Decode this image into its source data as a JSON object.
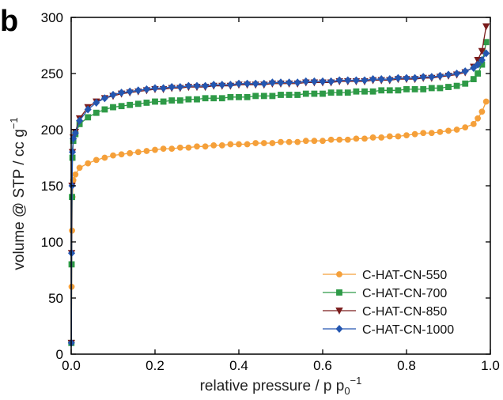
{
  "chart_data": {
    "type": "line",
    "panel_label": "b",
    "title": "",
    "xlabel_main": "relative pressure / p p",
    "xlabel_sub": "0",
    "xlabel_sup": "−1",
    "ylabel": "volume @ STP / cc g",
    "ylabel_sup": "−1",
    "xlim": [
      0,
      1.0
    ],
    "ylim": [
      0,
      300
    ],
    "x_ticks": [
      0,
      0.2,
      0.4,
      0.6,
      0.8,
      1.0
    ],
    "x_tick_labels": [
      "0.0",
      "0.2",
      "0.4",
      "0.6",
      "0.8",
      "1.0"
    ],
    "y_ticks": [
      0,
      50,
      100,
      150,
      200,
      250,
      300
    ],
    "y_tick_labels": [
      "0",
      "50",
      "100",
      "150",
      "200",
      "250",
      "300"
    ],
    "grid": false,
    "legend_position": "bottom-right",
    "series": [
      {
        "name": "C-HAT-CN-550",
        "color": "#F5A03A",
        "marker": "circle",
        "points": [
          [
            0.0005,
            10
          ],
          [
            0.001,
            60
          ],
          [
            0.002,
            110
          ],
          [
            0.003,
            140
          ],
          [
            0.005,
            155
          ],
          [
            0.01,
            160
          ],
          [
            0.02,
            166
          ],
          [
            0.04,
            170
          ],
          [
            0.06,
            173
          ],
          [
            0.08,
            175
          ],
          [
            0.1,
            177
          ],
          [
            0.12,
            178
          ],
          [
            0.14,
            179
          ],
          [
            0.16,
            180
          ],
          [
            0.18,
            181
          ],
          [
            0.2,
            182
          ],
          [
            0.22,
            183
          ],
          [
            0.24,
            183
          ],
          [
            0.26,
            184
          ],
          [
            0.28,
            184
          ],
          [
            0.3,
            185
          ],
          [
            0.32,
            185
          ],
          [
            0.34,
            186
          ],
          [
            0.36,
            186
          ],
          [
            0.38,
            187
          ],
          [
            0.4,
            187
          ],
          [
            0.42,
            187
          ],
          [
            0.44,
            188
          ],
          [
            0.46,
            188
          ],
          [
            0.48,
            188
          ],
          [
            0.5,
            189
          ],
          [
            0.52,
            189
          ],
          [
            0.54,
            189
          ],
          [
            0.56,
            190
          ],
          [
            0.58,
            190
          ],
          [
            0.6,
            190
          ],
          [
            0.62,
            191
          ],
          [
            0.64,
            191
          ],
          [
            0.66,
            191
          ],
          [
            0.68,
            192
          ],
          [
            0.7,
            192
          ],
          [
            0.72,
            193
          ],
          [
            0.74,
            193
          ],
          [
            0.76,
            194
          ],
          [
            0.78,
            194
          ],
          [
            0.8,
            195
          ],
          [
            0.82,
            196
          ],
          [
            0.84,
            197
          ],
          [
            0.86,
            197
          ],
          [
            0.88,
            198
          ],
          [
            0.9,
            199
          ],
          [
            0.92,
            200
          ],
          [
            0.94,
            202
          ],
          [
            0.96,
            205
          ],
          [
            0.97,
            210
          ],
          [
            0.98,
            216
          ],
          [
            0.99,
            225
          ]
        ]
      },
      {
        "name": "C-HAT-CN-700",
        "color": "#2E9A47",
        "marker": "square",
        "points": [
          [
            0.0005,
            10
          ],
          [
            0.001,
            80
          ],
          [
            0.002,
            140
          ],
          [
            0.003,
            175
          ],
          [
            0.005,
            190
          ],
          [
            0.01,
            196
          ],
          [
            0.02,
            205
          ],
          [
            0.04,
            211
          ],
          [
            0.06,
            215
          ],
          [
            0.08,
            218
          ],
          [
            0.1,
            220
          ],
          [
            0.12,
            221
          ],
          [
            0.14,
            222
          ],
          [
            0.16,
            223
          ],
          [
            0.18,
            224
          ],
          [
            0.2,
            225
          ],
          [
            0.22,
            225
          ],
          [
            0.24,
            226
          ],
          [
            0.26,
            226
          ],
          [
            0.28,
            227
          ],
          [
            0.3,
            227
          ],
          [
            0.32,
            228
          ],
          [
            0.34,
            228
          ],
          [
            0.36,
            228
          ],
          [
            0.38,
            229
          ],
          [
            0.4,
            229
          ],
          [
            0.42,
            229
          ],
          [
            0.44,
            230
          ],
          [
            0.46,
            230
          ],
          [
            0.48,
            230
          ],
          [
            0.5,
            231
          ],
          [
            0.52,
            231
          ],
          [
            0.54,
            231
          ],
          [
            0.56,
            232
          ],
          [
            0.58,
            232
          ],
          [
            0.6,
            232
          ],
          [
            0.62,
            233
          ],
          [
            0.64,
            233
          ],
          [
            0.66,
            233
          ],
          [
            0.68,
            234
          ],
          [
            0.7,
            234
          ],
          [
            0.72,
            234
          ],
          [
            0.74,
            235
          ],
          [
            0.76,
            235
          ],
          [
            0.78,
            235
          ],
          [
            0.8,
            236
          ],
          [
            0.82,
            236
          ],
          [
            0.84,
            236
          ],
          [
            0.86,
            237
          ],
          [
            0.88,
            237
          ],
          [
            0.9,
            238
          ],
          [
            0.92,
            239
          ],
          [
            0.94,
            241
          ],
          [
            0.96,
            245
          ],
          [
            0.97,
            250
          ],
          [
            0.98,
            258
          ],
          [
            0.99,
            278
          ]
        ]
      },
      {
        "name": "C-HAT-CN-850",
        "color": "#7A1C1C",
        "marker": "triangle-down",
        "points": [
          [
            0.0005,
            10
          ],
          [
            0.001,
            90
          ],
          [
            0.002,
            150
          ],
          [
            0.003,
            180
          ],
          [
            0.005,
            193
          ],
          [
            0.01,
            198
          ],
          [
            0.02,
            210
          ],
          [
            0.04,
            220
          ],
          [
            0.06,
            225
          ],
          [
            0.08,
            228
          ],
          [
            0.1,
            230
          ],
          [
            0.12,
            232
          ],
          [
            0.14,
            233
          ],
          [
            0.16,
            234
          ],
          [
            0.18,
            235
          ],
          [
            0.2,
            236
          ],
          [
            0.22,
            236
          ],
          [
            0.24,
            237
          ],
          [
            0.26,
            237
          ],
          [
            0.28,
            238
          ],
          [
            0.3,
            238
          ],
          [
            0.32,
            238
          ],
          [
            0.34,
            239
          ],
          [
            0.36,
            239
          ],
          [
            0.38,
            239
          ],
          [
            0.4,
            240
          ],
          [
            0.42,
            240
          ],
          [
            0.44,
            240
          ],
          [
            0.46,
            240
          ],
          [
            0.48,
            241
          ],
          [
            0.5,
            241
          ],
          [
            0.52,
            241
          ],
          [
            0.54,
            241
          ],
          [
            0.56,
            242
          ],
          [
            0.58,
            242
          ],
          [
            0.6,
            242
          ],
          [
            0.62,
            242
          ],
          [
            0.64,
            243
          ],
          [
            0.66,
            243
          ],
          [
            0.68,
            243
          ],
          [
            0.7,
            243
          ],
          [
            0.72,
            244
          ],
          [
            0.74,
            244
          ],
          [
            0.76,
            244
          ],
          [
            0.78,
            245
          ],
          [
            0.8,
            245
          ],
          [
            0.82,
            245
          ],
          [
            0.84,
            246
          ],
          [
            0.86,
            246
          ],
          [
            0.88,
            247
          ],
          [
            0.9,
            248
          ],
          [
            0.92,
            249
          ],
          [
            0.94,
            251
          ],
          [
            0.96,
            256
          ],
          [
            0.97,
            262
          ],
          [
            0.98,
            270
          ],
          [
            0.99,
            292
          ]
        ]
      },
      {
        "name": "C-HAT-CN-1000",
        "color": "#2456B0",
        "marker": "diamond",
        "points": [
          [
            0.0005,
            10
          ],
          [
            0.001,
            90
          ],
          [
            0.002,
            150
          ],
          [
            0.003,
            180
          ],
          [
            0.005,
            192
          ],
          [
            0.01,
            197
          ],
          [
            0.02,
            208
          ],
          [
            0.04,
            218
          ],
          [
            0.06,
            224
          ],
          [
            0.08,
            228
          ],
          [
            0.1,
            231
          ],
          [
            0.12,
            233
          ],
          [
            0.14,
            234
          ],
          [
            0.16,
            235
          ],
          [
            0.18,
            236
          ],
          [
            0.2,
            237
          ],
          [
            0.22,
            237
          ],
          [
            0.24,
            238
          ],
          [
            0.26,
            238
          ],
          [
            0.28,
            239
          ],
          [
            0.3,
            239
          ],
          [
            0.32,
            239
          ],
          [
            0.34,
            240
          ],
          [
            0.36,
            240
          ],
          [
            0.38,
            240
          ],
          [
            0.4,
            241
          ],
          [
            0.42,
            241
          ],
          [
            0.44,
            241
          ],
          [
            0.46,
            241
          ],
          [
            0.48,
            242
          ],
          [
            0.5,
            242
          ],
          [
            0.52,
            242
          ],
          [
            0.54,
            242
          ],
          [
            0.56,
            243
          ],
          [
            0.58,
            243
          ],
          [
            0.6,
            243
          ],
          [
            0.62,
            243
          ],
          [
            0.64,
            244
          ],
          [
            0.66,
            244
          ],
          [
            0.68,
            244
          ],
          [
            0.7,
            244
          ],
          [
            0.72,
            245
          ],
          [
            0.74,
            245
          ],
          [
            0.76,
            245
          ],
          [
            0.78,
            246
          ],
          [
            0.8,
            246
          ],
          [
            0.82,
            246
          ],
          [
            0.84,
            247
          ],
          [
            0.86,
            247
          ],
          [
            0.88,
            248
          ],
          [
            0.9,
            249
          ],
          [
            0.92,
            250
          ],
          [
            0.94,
            252
          ],
          [
            0.96,
            255
          ],
          [
            0.97,
            258
          ],
          [
            0.98,
            262
          ],
          [
            0.99,
            268
          ]
        ]
      }
    ]
  }
}
